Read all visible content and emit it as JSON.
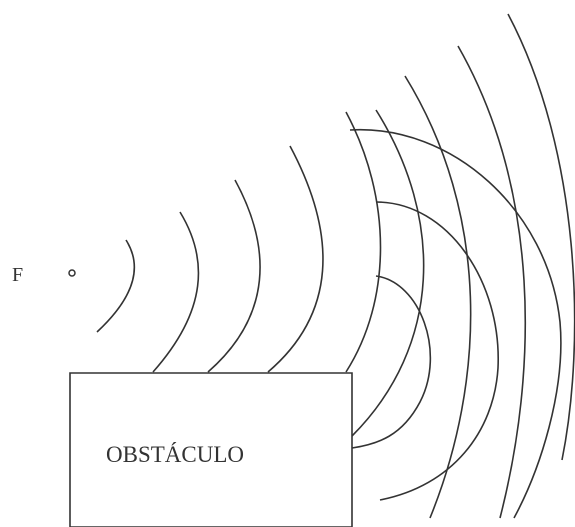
{
  "diagram": {
    "source_label": "F",
    "obstacle_label": "OBSTÁCULO",
    "line_color": "#333333",
    "background_color": "#ffffff",
    "incident_wavefront_count": 9,
    "diffracted_wavefront_count": 3
  }
}
